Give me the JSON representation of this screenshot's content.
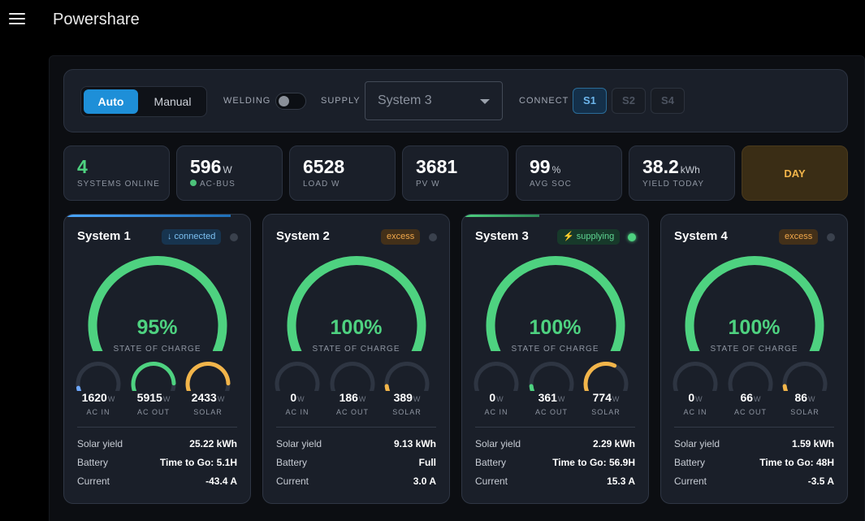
{
  "app": {
    "title": "Powershare"
  },
  "controls": {
    "mode_auto": "Auto",
    "mode_manual": "Manual",
    "welding_label": "WELDING",
    "supply_label": "SUPPLY",
    "supply_value": "System 3",
    "connect_label": "CONNECT",
    "connect_buttons": [
      "S1",
      "S2",
      "S4"
    ]
  },
  "stats": [
    {
      "value": "4",
      "unit": "",
      "label": "SYSTEMS ONLINE"
    },
    {
      "value": "596",
      "unit": "W",
      "label": "AC-BUS"
    },
    {
      "value": "6528",
      "unit": "",
      "label": "LOAD W"
    },
    {
      "value": "3681",
      "unit": "",
      "label": "PV W"
    },
    {
      "value": "99",
      "unit": "%",
      "label": "AVG SOC"
    },
    {
      "value": "38.2",
      "unit": "kWh",
      "label": "YIELD TODAY"
    }
  ],
  "day_badge": "DAY",
  "colors": {
    "green": "#4ed280",
    "blue": "#1e8fd8",
    "orange": "#f2b54a",
    "ac_in": "#6ea8ff"
  },
  "systems": [
    {
      "name": "System 1",
      "badge": "↓ connected",
      "badge_type": "connected",
      "soc_fraction": 0.95,
      "soc_text": "95%",
      "soc_label": "STATE OF CHARGE",
      "ac_in": "1620",
      "ac_out": "5915",
      "solar": "2433",
      "ac_in_level": 0.1,
      "ac_out_level": 0.85,
      "solar_level": 0.85,
      "labels": {
        "ac_in": "AC IN",
        "ac_out": "AC OUT",
        "solar": "SOLAR"
      },
      "unit": "W",
      "solar_yield_label": "Solar yield",
      "solar_yield": "25.22 kWh",
      "battery_label": "Battery",
      "battery": "Time to Go: 5.1H",
      "current_label": "Current",
      "current": "-43.4 A",
      "active": false,
      "accent": "blue"
    },
    {
      "name": "System 2",
      "badge": "excess",
      "badge_type": "excess",
      "soc_fraction": 1.0,
      "soc_text": "100%",
      "soc_label": "STATE OF CHARGE",
      "ac_in": "0",
      "ac_out": "186",
      "solar": "389",
      "ac_in_level": 0.0,
      "ac_out_level": 0.04,
      "solar_level": 0.12,
      "labels": {
        "ac_in": "AC IN",
        "ac_out": "AC OUT",
        "solar": "SOLAR"
      },
      "unit": "W",
      "solar_yield_label": "Solar yield",
      "solar_yield": "9.13 kWh",
      "battery_label": "Battery",
      "battery": "Full",
      "current_label": "Current",
      "current": "3.0 A",
      "active": false,
      "accent": ""
    },
    {
      "name": "System 3",
      "badge": "⚡ supplying",
      "badge_type": "supplying",
      "soc_fraction": 1.0,
      "soc_text": "100%",
      "soc_label": "STATE OF CHARGE",
      "ac_in": "0",
      "ac_out": "361",
      "solar": "774",
      "ac_in_level": 0.0,
      "ac_out_level": 0.12,
      "solar_level": 0.6,
      "labels": {
        "ac_in": "AC IN",
        "ac_out": "AC OUT",
        "solar": "SOLAR"
      },
      "unit": "W",
      "solar_yield_label": "Solar yield",
      "solar_yield": "2.29 kWh",
      "battery_label": "Battery",
      "battery": "Time to Go: 56.9H",
      "current_label": "Current",
      "current": "15.3 A",
      "active": true,
      "accent": "green"
    },
    {
      "name": "System 4",
      "badge": "excess",
      "badge_type": "excess",
      "soc_fraction": 1.0,
      "soc_text": "100%",
      "soc_label": "STATE OF CHARGE",
      "ac_in": "0",
      "ac_out": "66",
      "solar": "86",
      "ac_in_level": 0.0,
      "ac_out_level": 0.03,
      "solar_level": 0.12,
      "labels": {
        "ac_in": "AC IN",
        "ac_out": "AC OUT",
        "solar": "SOLAR"
      },
      "unit": "W",
      "solar_yield_label": "Solar yield",
      "solar_yield": "1.59 kWh",
      "battery_label": "Battery",
      "battery": "Time to Go: 48H",
      "current_label": "Current",
      "current": "-3.5 A",
      "active": false,
      "accent": ""
    }
  ]
}
